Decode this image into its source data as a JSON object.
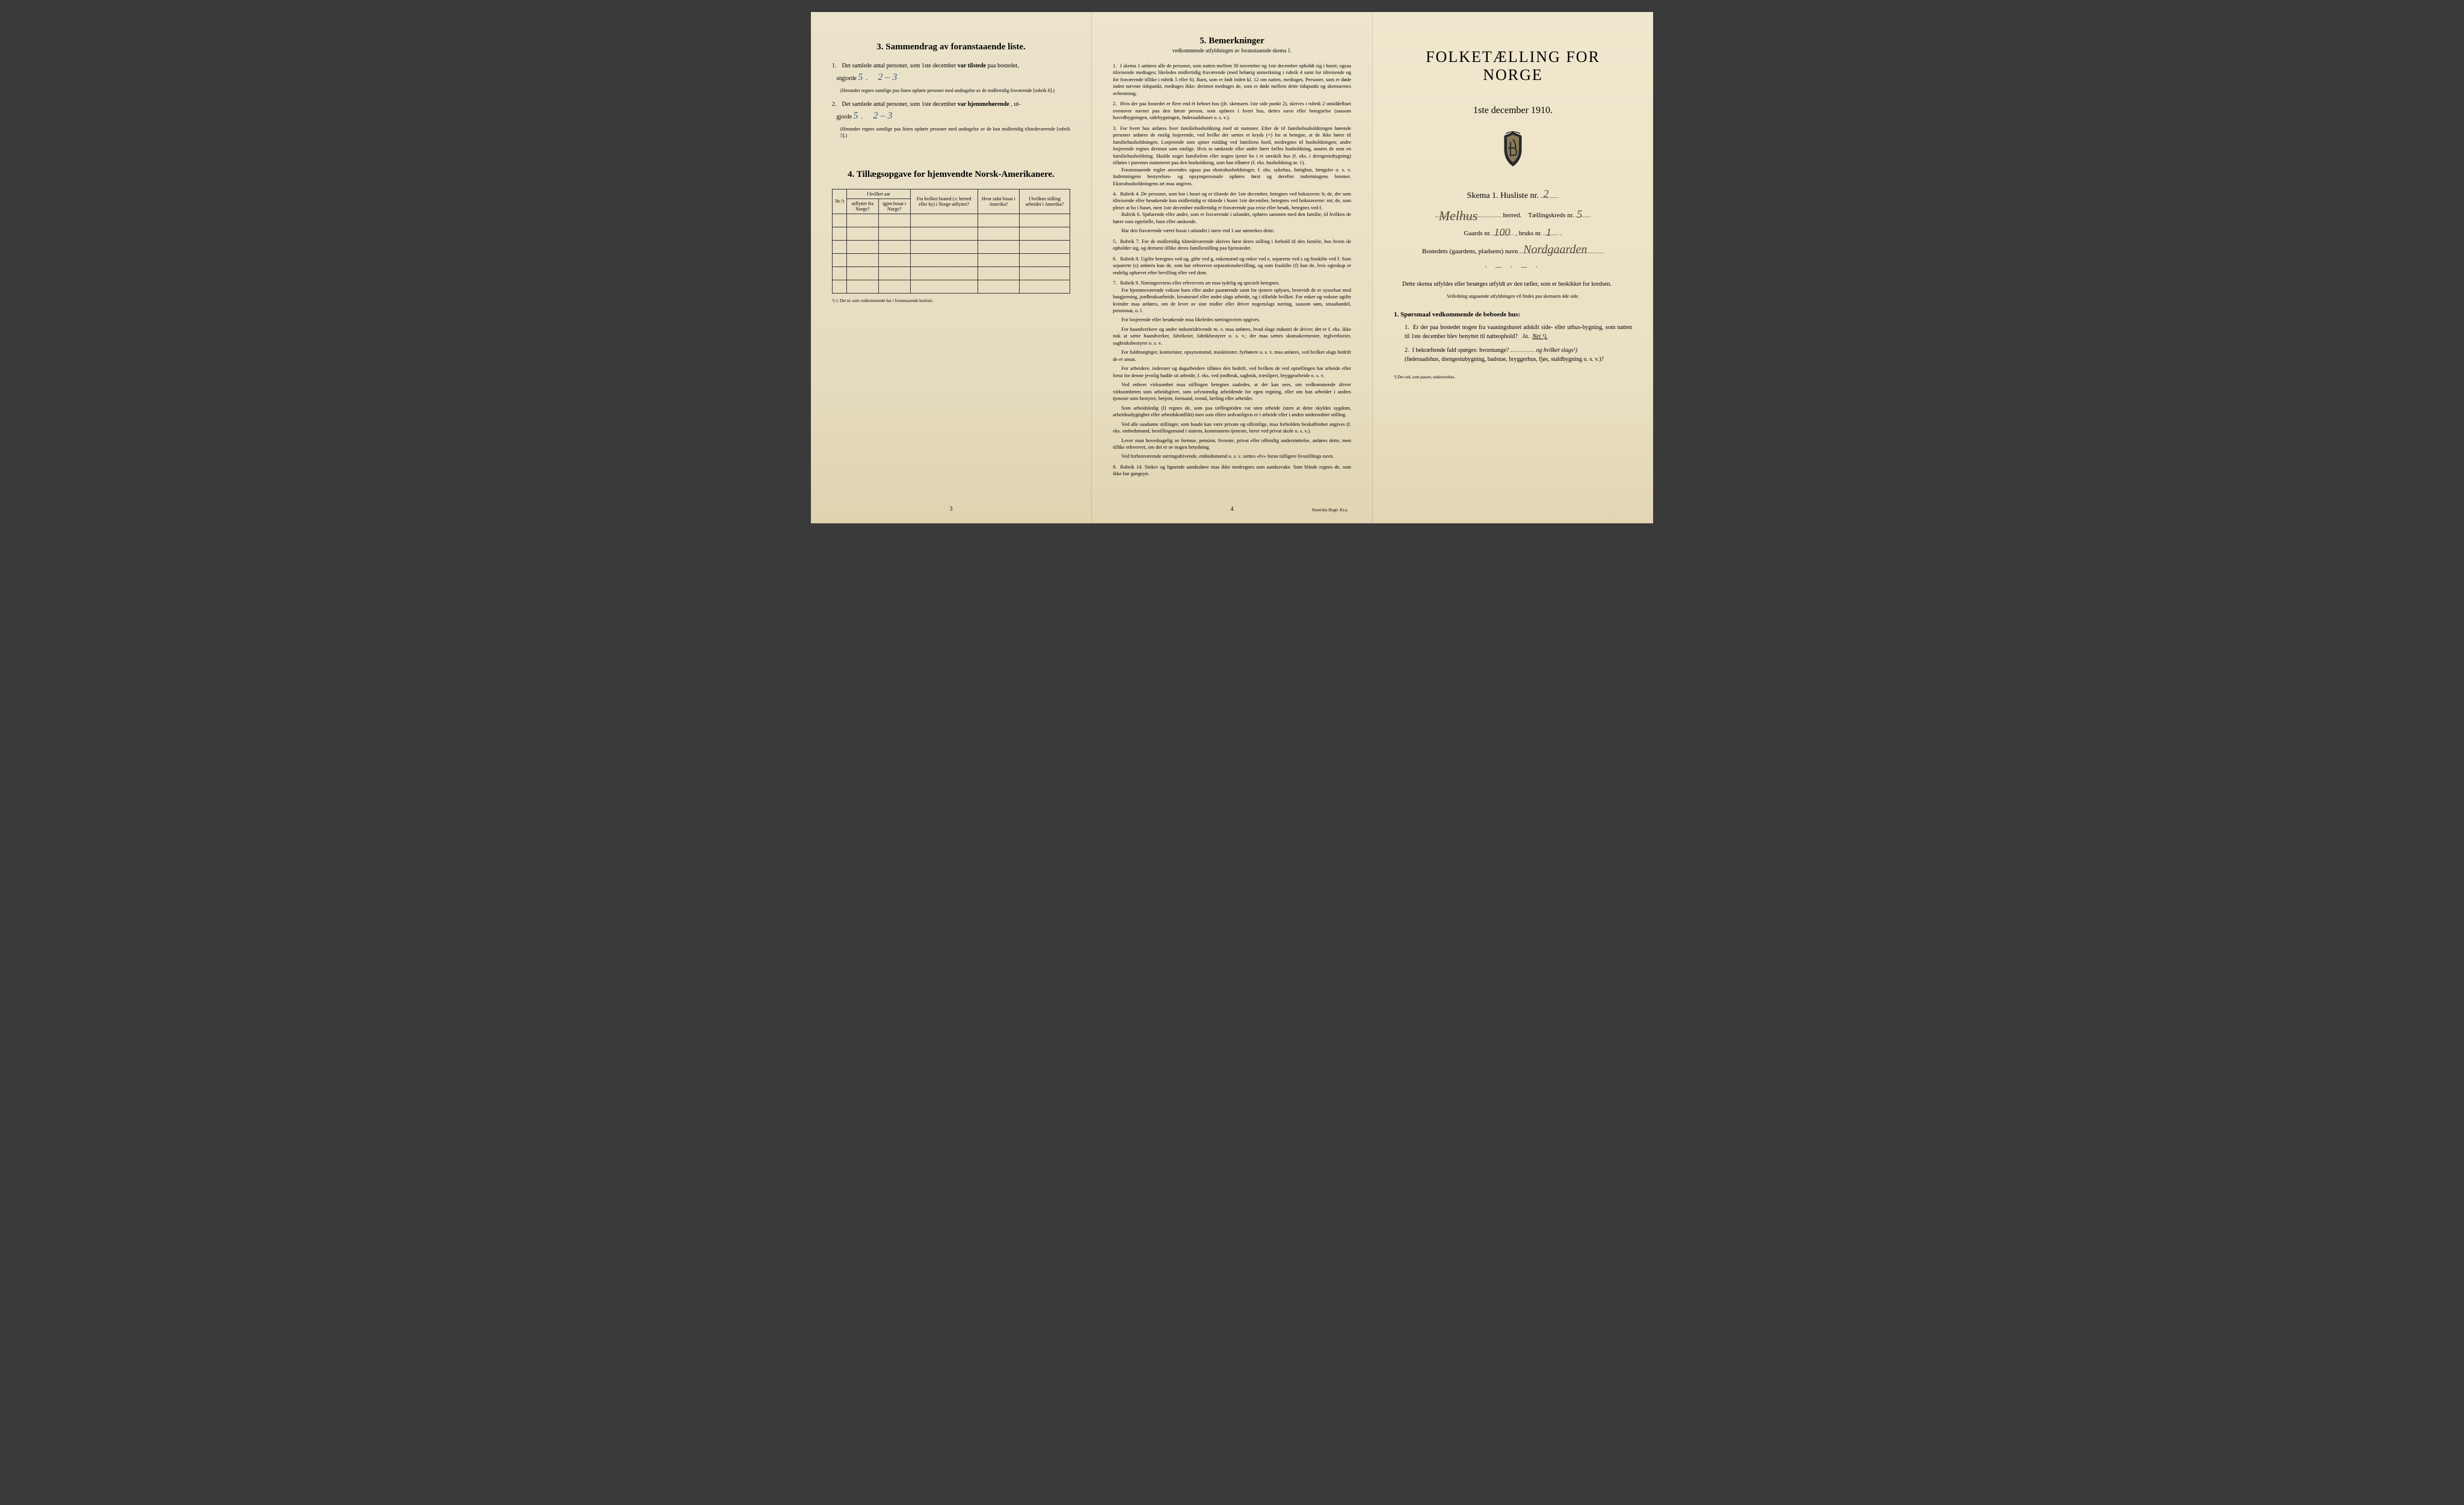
{
  "page3": {
    "section_title": "3.  Sammendrag av foranstaaende liste.",
    "item1_pre": "Det samlede antal personer, som 1ste december ",
    "item1_bold": "var tilstede",
    "item1_post": " paa bostedet,",
    "item1_line2_pre": "utgjorde ",
    "item1_hw1": "5",
    "item1_hw2": "2 – 3",
    "item1_note": "(Herunder regnes samtlige paa listen opførte personer med undtagelse av de midlertidig fraværende [rubrik 6].)",
    "item2_pre": "Det samlede antal personer, som 1ste december ",
    "item2_bold": "var hjemmehørende",
    "item2_post": ", ut-",
    "item2_line2_pre": "gjorde ",
    "item2_hw1": "5",
    "item2_hw2": "2 – 3",
    "item2_note": "(Herunder regnes samtlige paa listen opførte personer med undtagelse av de kun midlertidig tilstedeværende [rubrik 5].)",
    "section4_title": "4.  Tillægsopgave for hjemvendte Norsk-Amerikanere.",
    "th_nr": "Nr.¹)",
    "th_group1": "I hvilket aar",
    "th_utflyttet": "utflyttet fra Norge?",
    "th_igjen": "igjen bosat i Norge?",
    "th_bosted": "Fra hvilket bosted (ɔ: herred eller by) i Norge utflyttet?",
    "th_hvor": "Hvor sidst bosat i Amerika?",
    "th_stilling": "I hvilken stilling arbeidet i Amerika?",
    "footnote": "¹) ɔ: Det nr. som vedkommende har i foranstaaende husliste.",
    "pagenum": "3"
  },
  "page4": {
    "title": "5.  Bemerkninger",
    "subtitle": "vedkommende utfyldningen av foranstaaende skema 1.",
    "items": [
      {
        "n": "1.",
        "text": "I skema 1 anføres alle de personer, som natten mellem 30 november og 1ste december opholdt sig i huset; ogsaa tilreisende medtages; likeledes midlertidig fraværende (med behørig anmerkning i rubrik 4 samt for tilreisende og for fraværende tillike i rubrik 5 eller 6). Barn, som er født inden kl. 12 om natten, medtages. Personer, som er døde inden nævnte tidspunkt, medtages ikke; derimot medtages de, som er døde mellem dette tidspunkt og skemaernes avhentning."
      },
      {
        "n": "2.",
        "text": "Hvis der paa bostedet er flere end ét beboet hus (jfr. skemaets 1ste side punkt 2), skrives i rubrik 2 umiddelbart ovenover navnet paa den første person, som opføres i hvert hus, dettes navn eller betegnelse (saasom hovedbygningen, sidebygningen, føderaadshuset o. s. v.)."
      },
      {
        "n": "3.",
        "text": "For hvert hus anføres hver familiehusholdning med sit nummer. Efter de til familiehusholdningen hørende personer anføres de enslig losjerende, ved hvilke der sættes et kryds (×) for at betegne, at de ikke hører til familiehusholdningen. Losjerende som spiser middag ved familiens bord, medregnes til husholdningen; andre losjerende regnes derimot som enslige. Hvis to søskende eller andre fører fælles husholdning, ansees de som en familiehusholdning. Skulde noget familielem eller nogen tjener bo i et særskilt hus (f. eks. i drengestubygning) tilføies i parentes nummeret paa den husholdning, som han tilhører (f. eks. husholdning nr. 1).",
        "extra": [
          "Foranstaaende regler anvendes ogsaa paa ekstrahusholdninger, f. eks. sykehus, fattighus, fængsler o. s. v. Indretningens bestyrelses- og opsynspersonale opføres først og derefter indretningens lemmer. Ekstrahusholdningens art maa angives."
        ]
      },
      {
        "n": "4.",
        "text": "Rubrik 4. De personer, som bor i huset og er tilstede der 1ste december, betegnes ved bokstaven: b; de, der som tilreisende eller besøkende kun midlertidig er tilstede i huset 1ste december, betegnes ved bokstaverne: mt; de, som pleier at bo i huset, men 1ste december midlertidig er fraværende paa reise eller besøk, betegnes ved f.",
        "extra": [
          "Rubrik 6. Sjøfarende eller andre, som er fraværende i utlandet, opføres sammen med den familie, til hvilken de hører som egtefælle, barn eller søskende.",
          "Har den fraværende været bosat i utlandet i mere end 1 aar anmerkes dette."
        ]
      },
      {
        "n": "5.",
        "text": "Rubrik 7. For de midlertidig tilstedeværende skrives først deres stilling i forhold til den familie, hos hvem de opholder sig, og dernæst tillike deres familiestilling paa hjemstedet."
      },
      {
        "n": "6.",
        "text": "Rubrik 8. Ugifte betegnes ved ug, gifte ved g, enkemænd og enker ved e, separerte ved s og fraskilte ved f. Som separerte (s) anføres kun de, som har erhvervet separationsbevilling, og som fraskilte (f) kun de, hvis egteskap er endelig ophævet efter bevilling eller ved dom."
      },
      {
        "n": "7.",
        "text": "Rubrik 9. Næringsveiens eller erhvervets art maa tydelig og specielt betegnes.",
        "extra": [
          "For hjemmeværende voksne barn eller andre paarørende samt for tjenere oplyses, hvorvidt de er sysselsat med husgjerning, jordbruksarbeide, kreaturstel eller andet slags arbeide, og i tilfælde hvilket. For enker og voksne ugifte kvinder maa anføres, om de lever av sine midler eller driver nogenslags næring, saasom søm, smaahandel, pensionat, o. l.",
          "For losjerende eller besøkende maa likeledes næringsveien opgives.",
          "For haandverkere og andre industridrivende m. v. maa anføres, hvad slags industri de driver; det er f. eks. ikke nok at sætte haandverker, fabrikeier, fabrikbestyrer o. s. v.; der maa sættes skomakermester, teglverkseier, sagbruksbestyrer o. s. v.",
          "For fuldmægtiger, kontorister, opsynsmænd, maskinister, fyrbøtere o. s. v. maa anføres, ved hvilket slags bedrift de er ansat.",
          "For arbeidere, inderster og dagarbeidere tilføies den bedrift, ved hvilken de ved optællingen har arbeide eller forut for denne jevnlig hadde sit arbeide, f. eks. ved jordbruk, sagbruk, træsliperi, bryggearbeide o. s. v.",
          "Ved enhver virksomhet maa stillingen betegnes saaledes, at det kan sees, om vedkommende driver virksomheten som arbeidsgiver, som selvstændig arbeidende for egen regning, eller om han arbeider i andres tjeneste som bestyrer, betjent, formand, svend, lærling eller arbeider.",
          "Som arbeidsledig (l) regnes de, som paa tællingstiden var uten arbeide (uten at dette skyldes sygdom, arbeidsudygtighet eller arbeidskonflikt) men som ellers sedvanligvis er i arbeide eller i anden underordnet stilling.",
          "Ved alle saadanne stillinger, som baade kan være private og offentlige, maa forholdets beskaffenhet angives (f. eks. embedsmand, bestillingsmand i statens, kommunens tjeneste, lærer ved privat skole o. s. v.).",
          "Lever man hovedsagelig av formue, pension, livrente, privat eller offentlig understøttelse, anføres dette, men tillike erhvervet, om det er av nogen betydning.",
          "Ved forhenværende næringsdrivende, embedsmænd o. s. v. sættes «fv» foran tidligere livsstillings navn."
        ]
      },
      {
        "n": "8.",
        "text": "Rubrik 14. Sinker og lignende aandssløve maa ikke medregnes som aandssvake. Som blinde regnes de, som ikke har gangsyn."
      }
    ],
    "pagenum": "4",
    "imprint": "Steen'ske Bogtr.  Kr.a."
  },
  "cover": {
    "title": "FOLKETÆLLING FOR NORGE",
    "date": "1ste december 1910.",
    "skema_pre": "Skema 1.  Husliste nr.",
    "skema_hw": "2",
    "herred_hw": "Melhus",
    "herred_label": "herred.",
    "tellingskreds_label": "Tællingskreds nr.",
    "tellingskreds_hw": "5",
    "gaards_label": "Gaards nr.",
    "gaards_hw": "100",
    "bruks_label": ", bruks nr.",
    "bruks_hw": "1",
    "bosted_label": "Bostedets (gaardens, pladsens) navn",
    "bosted_hw": "Nordgaarden",
    "para1": "Dette skema utfyldes eller besørges utfyldt av den tæller, som er beskikket for kredsen.",
    "para1_small": "Veiledning angaaende utfyldningen vil findes paa skemaets 4de side.",
    "q_head": "1. Spørsmaal vedkommende de beboede hus:",
    "q1": "Er der paa bostedet nogen fra vaaningshuset adskilt side- eller uthus-bygning, som natten til 1ste december blev benyttet til natteophold?",
    "q1_ja": "Ja.",
    "q1_nei": "Nei ¹).",
    "q2": "I bekræftende fald spørges: hvormange?",
    "q2_mid": "og hvilket slags¹)",
    "q2_post": "(føderaadshus, drengestubygning, badstue, bryggerhus, fjøs, staldbygning o. s. v.)?",
    "foot": "¹) Det ord, som passer, understrekes."
  },
  "colors": {
    "paper": "#e8e0c8",
    "ink": "#1a1a1a",
    "handwriting": "#3a5a8a",
    "handwriting_brown": "#5a4a3a"
  }
}
